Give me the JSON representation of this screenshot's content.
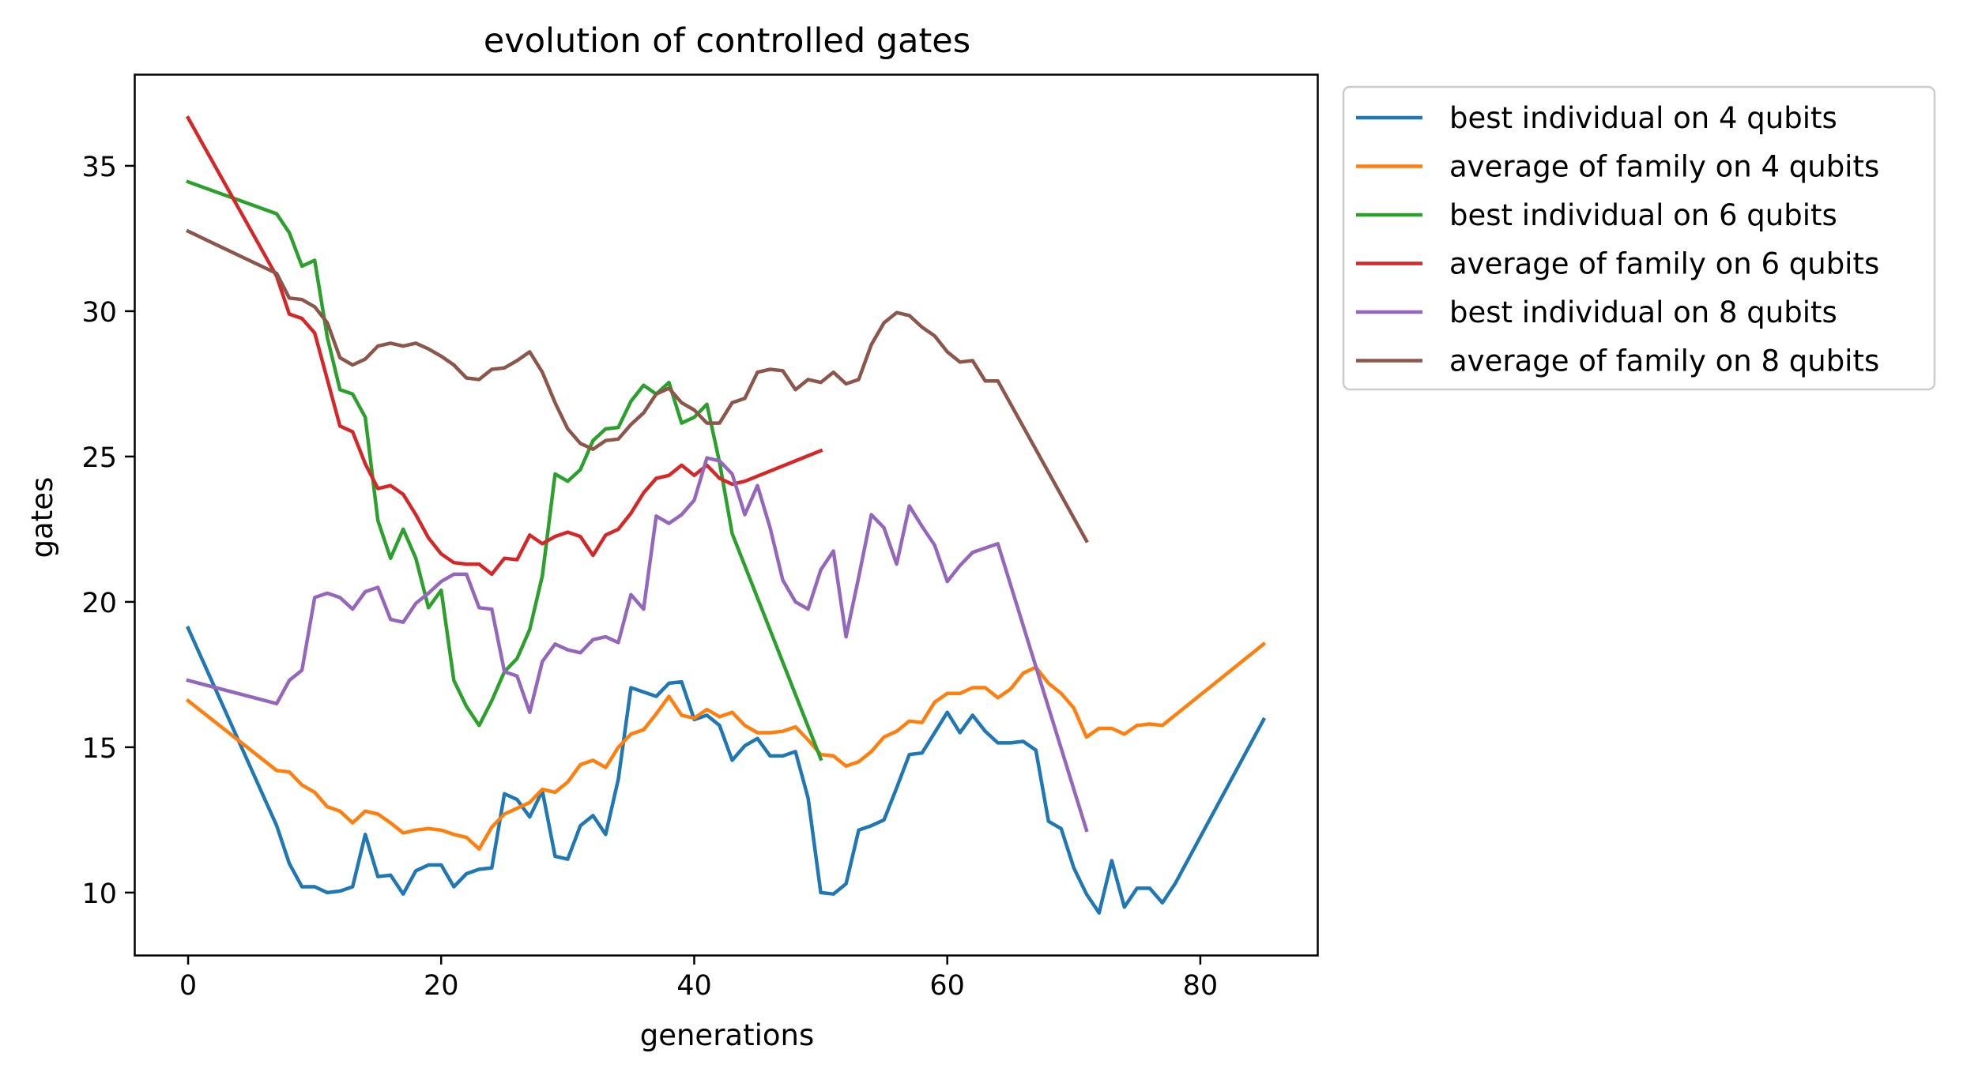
{
  "chart_data": {
    "type": "line",
    "title": "evolution of controlled gates",
    "xlabel": "generations",
    "ylabel": "gates",
    "xlim": [
      -4.25,
      89.25
    ],
    "ylim": [
      7.85,
      38.15
    ],
    "xticks": [
      0,
      20,
      40,
      60,
      80
    ],
    "yticks": [
      10,
      15,
      20,
      25,
      30,
      35
    ],
    "grid": false,
    "legend_position": "outside upper right",
    "series": [
      {
        "name": "best individual on 4 qubits",
        "color": "#1f77b4",
        "x": [
          0,
          7,
          8,
          9,
          10,
          11,
          12,
          13,
          14,
          15,
          16,
          17,
          18,
          19,
          20,
          21,
          22,
          23,
          24,
          25,
          26,
          27,
          28,
          29,
          30,
          31,
          32,
          33,
          34,
          35,
          36,
          37,
          38,
          39,
          40,
          41,
          42,
          43,
          44,
          45,
          46,
          47,
          48,
          49,
          50,
          51,
          52,
          53,
          54,
          55,
          56,
          57,
          58,
          59,
          60,
          61,
          62,
          63,
          64,
          65,
          66,
          67,
          68,
          69,
          70,
          71,
          72,
          73,
          74,
          75,
          76,
          77,
          78,
          85
        ],
        "y": [
          19.1,
          12.3,
          11.0,
          10.2,
          10.2,
          10.0,
          10.05,
          10.2,
          12.0,
          10.55,
          10.6,
          9.95,
          10.75,
          10.95,
          10.95,
          10.2,
          10.65,
          10.8,
          10.85,
          13.4,
          13.2,
          12.6,
          13.5,
          11.25,
          11.15,
          12.3,
          12.65,
          12.0,
          13.9,
          17.05,
          16.9,
          16.75,
          17.2,
          17.25,
          15.95,
          16.1,
          15.75,
          14.55,
          15.05,
          15.3,
          14.7,
          14.7,
          14.85,
          13.25,
          10.0,
          9.95,
          10.3,
          12.15,
          12.3,
          12.5,
          13.6,
          14.75,
          14.8,
          15.5,
          16.2,
          15.5,
          16.1,
          15.55,
          15.15,
          15.15,
          15.2,
          14.9,
          12.45,
          12.2,
          10.85,
          9.95,
          9.3,
          11.1,
          9.5,
          10.15,
          10.15,
          9.65,
          10.3,
          15.95
        ]
      },
      {
        "name": "average of family on 4 qubits",
        "color": "#ff7f0e",
        "x": [
          0,
          7,
          8,
          9,
          10,
          11,
          12,
          13,
          14,
          15,
          16,
          17,
          18,
          19,
          20,
          21,
          22,
          23,
          24,
          25,
          26,
          27,
          28,
          29,
          30,
          31,
          32,
          33,
          34,
          35,
          36,
          37,
          38,
          39,
          40,
          41,
          42,
          43,
          44,
          45,
          46,
          47,
          48,
          49,
          50,
          51,
          52,
          53,
          54,
          55,
          56,
          57,
          58,
          59,
          60,
          61,
          62,
          63,
          64,
          65,
          66,
          67,
          68,
          69,
          70,
          71,
          72,
          73,
          74,
          75,
          76,
          77,
          78,
          85
        ],
        "y": [
          16.6,
          14.2,
          14.15,
          13.7,
          13.45,
          12.95,
          12.8,
          12.4,
          12.8,
          12.7,
          12.4,
          12.05,
          12.15,
          12.2,
          12.15,
          12.0,
          11.9,
          11.5,
          12.25,
          12.7,
          12.9,
          13.1,
          13.55,
          13.45,
          13.8,
          14.4,
          14.55,
          14.3,
          15.0,
          15.45,
          15.6,
          16.15,
          16.75,
          16.1,
          16.0,
          16.3,
          16.05,
          16.2,
          15.75,
          15.5,
          15.5,
          15.55,
          15.7,
          15.25,
          14.75,
          14.7,
          14.35,
          14.5,
          14.85,
          15.35,
          15.55,
          15.9,
          15.85,
          16.55,
          16.85,
          16.85,
          17.05,
          17.05,
          16.7,
          17.0,
          17.55,
          17.75,
          17.2,
          16.85,
          16.35,
          15.35,
          15.65,
          15.65,
          15.45,
          15.75,
          15.8,
          15.75,
          16.1,
          18.55
        ]
      },
      {
        "name": "best individual on 6 qubits",
        "color": "#2ca02c",
        "x": [
          0,
          7,
          8,
          9,
          10,
          11,
          12,
          13,
          14,
          15,
          16,
          17,
          18,
          19,
          20,
          21,
          22,
          23,
          24,
          25,
          26,
          27,
          28,
          29,
          30,
          31,
          32,
          33,
          34,
          35,
          36,
          37,
          38,
          39,
          40,
          41,
          42,
          43,
          50
        ],
        "y": [
          34.45,
          33.35,
          32.7,
          31.55,
          31.75,
          29.1,
          27.3,
          27.15,
          26.35,
          22.8,
          21.5,
          22.5,
          21.5,
          19.8,
          20.4,
          17.3,
          16.4,
          15.75,
          16.6,
          17.6,
          18.05,
          19.05,
          20.9,
          24.4,
          24.15,
          24.55,
          25.55,
          25.95,
          26.0,
          26.9,
          27.45,
          27.15,
          27.55,
          26.15,
          26.35,
          26.8,
          24.8,
          22.35,
          14.6
        ]
      },
      {
        "name": "average of family on 6 qubits",
        "color": "#d62728",
        "x": [
          0,
          7,
          8,
          9,
          10,
          11,
          12,
          13,
          14,
          15,
          16,
          17,
          18,
          19,
          20,
          21,
          22,
          23,
          24,
          25,
          26,
          27,
          28,
          29,
          30,
          31,
          32,
          33,
          34,
          35,
          36,
          37,
          38,
          39,
          40,
          41,
          42,
          43,
          44,
          50
        ],
        "y": [
          36.65,
          31.2,
          29.9,
          29.75,
          29.25,
          27.65,
          26.05,
          25.85,
          24.75,
          23.9,
          24.0,
          23.7,
          23.0,
          22.2,
          21.65,
          21.35,
          21.3,
          21.3,
          20.95,
          21.5,
          21.45,
          22.3,
          22.0,
          22.25,
          22.4,
          22.25,
          21.6,
          22.3,
          22.5,
          23.05,
          23.75,
          24.25,
          24.35,
          24.7,
          24.35,
          24.7,
          24.25,
          24.05,
          24.15,
          25.2
        ]
      },
      {
        "name": "best individual on 8 qubits",
        "color": "#9467bd",
        "x": [
          0,
          7,
          8,
          9,
          10,
          11,
          12,
          13,
          14,
          15,
          16,
          17,
          18,
          19,
          20,
          21,
          22,
          23,
          24,
          25,
          26,
          27,
          28,
          29,
          30,
          31,
          32,
          33,
          34,
          35,
          36,
          37,
          38,
          39,
          40,
          41,
          42,
          43,
          44,
          45,
          46,
          47,
          48,
          49,
          50,
          51,
          52,
          53,
          54,
          55,
          56,
          57,
          58,
          59,
          60,
          61,
          62,
          63,
          64,
          71
        ],
        "y": [
          17.3,
          16.5,
          17.3,
          17.65,
          20.15,
          20.3,
          20.15,
          19.75,
          20.35,
          20.5,
          19.4,
          19.3,
          19.95,
          20.3,
          20.7,
          20.95,
          20.95,
          19.8,
          19.75,
          17.6,
          17.45,
          16.2,
          17.95,
          18.55,
          18.35,
          18.25,
          18.7,
          18.8,
          18.6,
          20.25,
          19.75,
          22.95,
          22.7,
          23.0,
          23.5,
          24.95,
          24.85,
          24.4,
          23.0,
          24.0,
          22.55,
          20.75,
          20.0,
          19.75,
          21.1,
          21.75,
          18.8,
          20.85,
          23.0,
          22.55,
          21.3,
          23.3,
          22.6,
          21.95,
          20.7,
          21.25,
          21.7,
          21.85,
          22.0,
          12.15
        ]
      },
      {
        "name": "average of family on 8 qubits",
        "color": "#8c564b",
        "x": [
          0,
          7,
          8,
          9,
          10,
          11,
          12,
          13,
          14,
          15,
          16,
          17,
          18,
          19,
          20,
          21,
          22,
          23,
          24,
          25,
          26,
          27,
          28,
          29,
          30,
          31,
          32,
          33,
          34,
          35,
          36,
          37,
          38,
          39,
          40,
          41,
          42,
          43,
          44,
          45,
          46,
          47,
          48,
          49,
          50,
          51,
          52,
          53,
          54,
          55,
          56,
          57,
          58,
          59,
          60,
          61,
          62,
          63,
          64,
          71
        ],
        "y": [
          32.75,
          31.3,
          30.45,
          30.4,
          30.15,
          29.6,
          28.4,
          28.15,
          28.35,
          28.8,
          28.9,
          28.8,
          28.9,
          28.7,
          28.45,
          28.15,
          27.7,
          27.65,
          28.0,
          28.05,
          28.3,
          28.6,
          27.9,
          26.85,
          25.95,
          25.45,
          25.25,
          25.55,
          25.6,
          26.1,
          26.5,
          27.15,
          27.35,
          26.85,
          26.6,
          26.15,
          26.15,
          26.85,
          27.0,
          27.9,
          28.0,
          27.95,
          27.3,
          27.65,
          27.55,
          27.9,
          27.5,
          27.65,
          28.85,
          29.6,
          29.95,
          29.85,
          29.45,
          29.15,
          28.6,
          28.25,
          28.3,
          27.6,
          27.6,
          22.1
        ]
      }
    ]
  }
}
